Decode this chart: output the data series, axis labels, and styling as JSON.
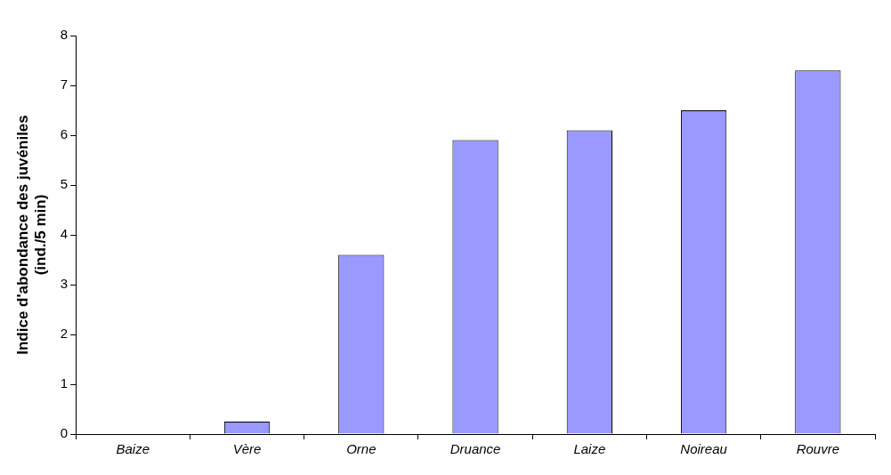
{
  "chart_data": {
    "type": "bar",
    "ylabel": "Indice d'abondance des juvéniles\n(ind./5 min)",
    "categories": [
      "Baize",
      "Vère",
      "Orne",
      "Druance",
      "Laize",
      "Noireau",
      "Rouvre"
    ],
    "values": [
      0,
      0.25,
      3.6,
      5.9,
      6.1,
      6.5,
      7.3
    ],
    "color": "#9999ff",
    "ylim": [
      0,
      8
    ],
    "yticks": [
      0,
      1,
      2,
      3,
      4,
      5,
      6,
      7,
      8
    ],
    "grid": false,
    "legend": false
  }
}
